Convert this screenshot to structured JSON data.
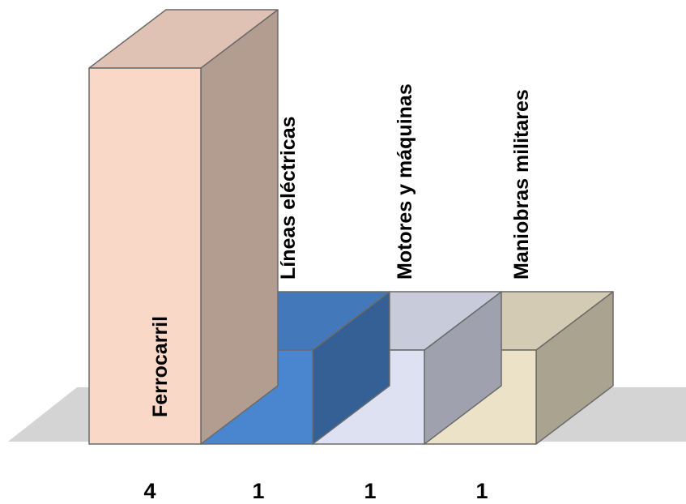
{
  "chart_data": {
    "type": "bar",
    "style": "3d",
    "categories": [
      "Ferrocarril",
      "Líneas eléctricas",
      "Motores y máquinas",
      "Maniobras militares"
    ],
    "values": [
      4,
      1,
      1,
      1
    ],
    "value_labels": [
      "4",
      "1",
      "1",
      "1"
    ],
    "colors": [
      "#f9d8c8",
      "#4a86cf",
      "#dde1f2",
      "#ece2c8"
    ],
    "floor_color": "#d4d4d4",
    "title": "",
    "xlabel": "",
    "ylabel": "",
    "ylim": [
      0,
      4
    ],
    "grid": false,
    "legend": "none"
  }
}
